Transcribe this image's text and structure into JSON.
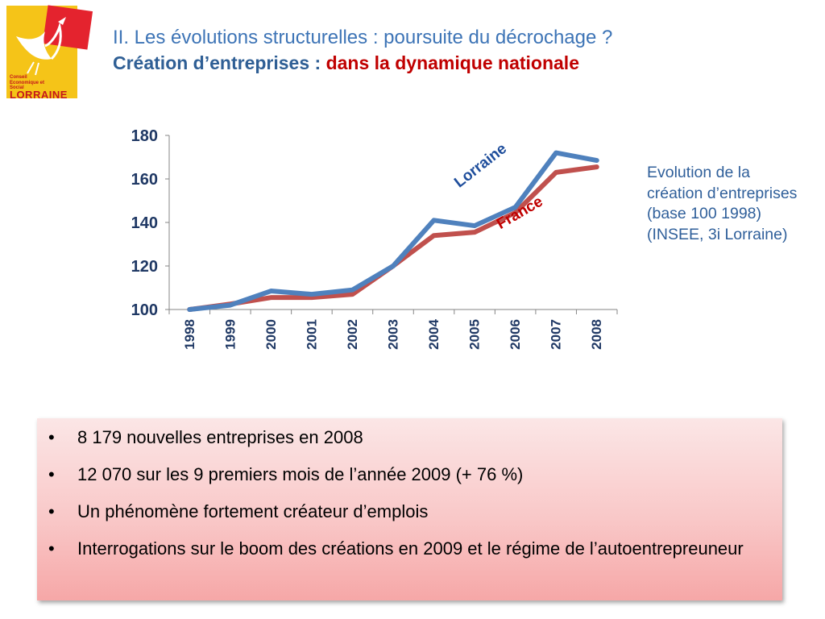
{
  "logo": {
    "small_text": "Conseil Economique et Social",
    "big_text": "LORRAINE"
  },
  "title": {
    "line1": "II. Les évolutions structurelles : poursuite du décrochage ?",
    "line2_prefix": "Création d’entreprises : ",
    "line2_highlight": "dans la dynamique nationale"
  },
  "side_note": "Evolution de la création d’entreprises (base 100 1998) (INSEE, 3i Lorraine)",
  "bullets": [
    "8 179 nouvelles entreprises en 2008",
    "12 070 sur les 9 premiers mois de l’année 2009 (+ 76 %)",
    "Un phénomène fortement créateur d’emplois",
    "Interrogations sur le boom des créations en 2009 et le régime de l’autoentrepreuneur"
  ],
  "colors": {
    "lorraine": "#4f81bd",
    "france": "#c0504d"
  },
  "chart_data": {
    "type": "line",
    "categories": [
      "1998",
      "1999",
      "2000",
      "2001",
      "2002",
      "2003",
      "2004",
      "2005",
      "2006",
      "2007",
      "2008"
    ],
    "series": [
      {
        "name": "Lorraine",
        "values": [
          100,
          102,
          108.5,
          107,
          109,
          120,
          141,
          138.5,
          147,
          172,
          168.5
        ]
      },
      {
        "name": "France",
        "values": [
          100,
          102.5,
          105.5,
          105.5,
          107,
          120,
          134,
          135.5,
          144.5,
          163,
          165.5
        ]
      }
    ],
    "ylim": [
      100,
      180
    ],
    "yticks": [
      100,
      120,
      140,
      160,
      180
    ],
    "grid": false,
    "legend": "inline labels"
  }
}
